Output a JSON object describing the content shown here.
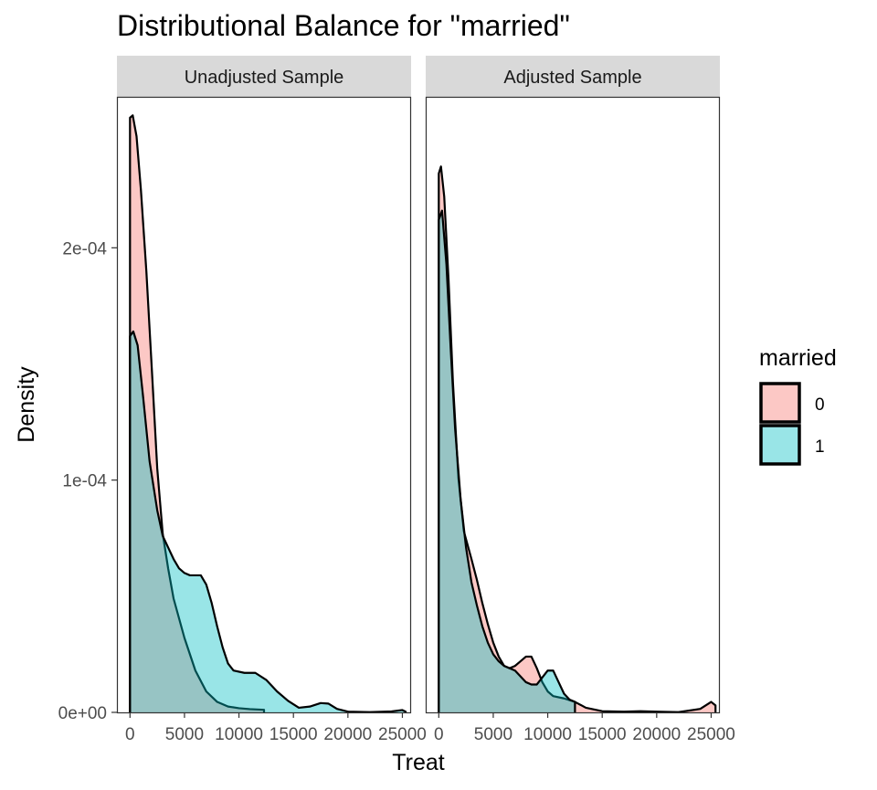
{
  "chart_data": {
    "type": "area",
    "title": "Distributional Balance for \"married\"",
    "xlabel": "Treat",
    "ylabel": "Density",
    "xlim": [
      -1200,
      25800
    ],
    "ylim": [
      0,
      0.000265
    ],
    "x_ticks": [
      0,
      5000,
      10000,
      15000,
      20000,
      25000
    ],
    "x_tick_labels": [
      "0",
      "5000",
      "10000",
      "15000",
      "20000",
      "25000"
    ],
    "y_ticks": [
      0,
      0.0001,
      0.0002
    ],
    "y_tick_labels": [
      "0e+00",
      "1e-04",
      "2e-04"
    ],
    "grid": false,
    "legend": {
      "title": "married",
      "position": "right",
      "entries": [
        {
          "label": "0",
          "color": "#F8766D"
        },
        {
          "label": "1",
          "color": "#00BFC4"
        }
      ]
    },
    "panels": [
      {
        "strip": "Unadjusted Sample",
        "series": [
          {
            "name": "0",
            "color": "#F8766D",
            "points": [
              [
                0,
                0
              ],
              [
                0,
                0.000256
              ],
              [
                250,
                0.000257
              ],
              [
                600,
                0.000248
              ],
              [
                1000,
                0.000225
              ],
              [
                1500,
                0.00019
              ],
              [
                2000,
                0.000148
              ],
              [
                2500,
                0.000105
              ],
              [
                3000,
                7.7e-05
              ],
              [
                3500,
                6.2e-05
              ],
              [
                4000,
                4.9e-05
              ],
              [
                5000,
                3.2e-05
              ],
              [
                6000,
                1.8e-05
              ],
              [
                7000,
                9e-06
              ],
              [
                8000,
                4.5e-06
              ],
              [
                9000,
                2.5e-06
              ],
              [
                10000,
                1.8e-06
              ],
              [
                11000,
                1.4e-06
              ],
              [
                12300,
                1.1e-06
              ],
              [
                12300,
                0
              ]
            ]
          },
          {
            "name": "1",
            "color": "#00BFC4",
            "points": [
              [
                0,
                0
              ],
              [
                0,
                0.000162
              ],
              [
                300,
                0.000164
              ],
              [
                700,
                0.000158
              ],
              [
                1200,
                0.000136
              ],
              [
                1800,
                0.000108
              ],
              [
                2500,
                8.7e-05
              ],
              [
                3000,
                7.6e-05
              ],
              [
                3500,
                7.1e-05
              ],
              [
                4000,
                6.6e-05
              ],
              [
                4500,
                6.2e-05
              ],
              [
                5000,
                6e-05
              ],
              [
                5500,
                5.9e-05
              ],
              [
                6000,
                5.9e-05
              ],
              [
                6500,
                5.9e-05
              ],
              [
                7000,
                5.5e-05
              ],
              [
                7500,
                4.7e-05
              ],
              [
                8000,
                3.7e-05
              ],
              [
                8500,
                2.8e-05
              ],
              [
                9000,
                2.1e-05
              ],
              [
                9500,
                1.8e-05
              ],
              [
                10500,
                1.7e-05
              ],
              [
                11500,
                1.7e-05
              ],
              [
                12500,
                1.4e-05
              ],
              [
                13500,
                9e-06
              ],
              [
                14500,
                5e-06
              ],
              [
                15500,
                2e-06
              ],
              [
                16500,
                2.5e-06
              ],
              [
                17500,
                4e-06
              ],
              [
                18200,
                3.8e-06
              ],
              [
                19000,
                1.5e-06
              ],
              [
                20000,
                3e-07
              ],
              [
                22000,
                1e-07
              ],
              [
                24000,
                4e-07
              ],
              [
                25000,
                1e-06
              ],
              [
                25300,
                3e-07
              ],
              [
                25300,
                0
              ]
            ]
          }
        ]
      },
      {
        "strip": "Adjusted Sample",
        "series": [
          {
            "name": "0",
            "color": "#F8766D",
            "points": [
              [
                0,
                0
              ],
              [
                0,
                0.000232
              ],
              [
                200,
                0.000235
              ],
              [
                500,
                0.000222
              ],
              [
                900,
                0.000186
              ],
              [
                1300,
                0.000142
              ],
              [
                1800,
                0.000101
              ],
              [
                2300,
                7.8e-05
              ],
              [
                3000,
                6.6e-05
              ],
              [
                3500,
                5.7e-05
              ],
              [
                4000,
                4.7e-05
              ],
              [
                4500,
                3.8e-05
              ],
              [
                5000,
                3e-05
              ],
              [
                5500,
                2.4e-05
              ],
              [
                6000,
                2e-05
              ],
              [
                6500,
                1.9e-05
              ],
              [
                7000,
                2e-05
              ],
              [
                7500,
                2.2e-05
              ],
              [
                8000,
                2.4e-05
              ],
              [
                8500,
                2.4e-05
              ],
              [
                9000,
                1.9e-05
              ],
              [
                9500,
                1.3e-05
              ],
              [
                10000,
                9e-06
              ],
              [
                10500,
                7e-06
              ],
              [
                11500,
                6e-06
              ],
              [
                12500,
                4.5e-06
              ],
              [
                13500,
                2e-06
              ],
              [
                15000,
                5e-07
              ],
              [
                17000,
                3e-07
              ],
              [
                18500,
                5e-07
              ],
              [
                20000,
                3e-07
              ],
              [
                22000,
                1e-07
              ],
              [
                24000,
                1.5e-06
              ],
              [
                25000,
                4.5e-06
              ],
              [
                25400,
                3e-06
              ],
              [
                25400,
                0
              ]
            ]
          },
          {
            "name": "1",
            "color": "#00BFC4",
            "points": [
              [
                0,
                0
              ],
              [
                0,
                0.000212
              ],
              [
                300,
                0.000216
              ],
              [
                700,
                0.000193
              ],
              [
                1100,
                0.000156
              ],
              [
                1500,
                0.000122
              ],
              [
                2000,
                9.2e-05
              ],
              [
                2500,
                7.1e-05
              ],
              [
                3000,
                5.6e-05
              ],
              [
                3500,
                4.6e-05
              ],
              [
                4000,
                3.7e-05
              ],
              [
                4500,
                3e-05
              ],
              [
                5000,
                2.5e-05
              ],
              [
                5500,
                2.2e-05
              ],
              [
                6000,
                2e-05
              ],
              [
                7000,
                1.8e-05
              ],
              [
                8000,
                1.3e-05
              ],
              [
                8500,
                1.2e-05
              ],
              [
                9000,
                1.2e-05
              ],
              [
                9500,
                1.5e-05
              ],
              [
                10000,
                1.8e-05
              ],
              [
                10500,
                1.8e-05
              ],
              [
                11000,
                1.3e-05
              ],
              [
                11500,
                8e-06
              ],
              [
                12000,
                5.5e-06
              ],
              [
                12500,
                4.5e-06
              ],
              [
                12500,
                0
              ]
            ]
          }
        ]
      }
    ]
  }
}
